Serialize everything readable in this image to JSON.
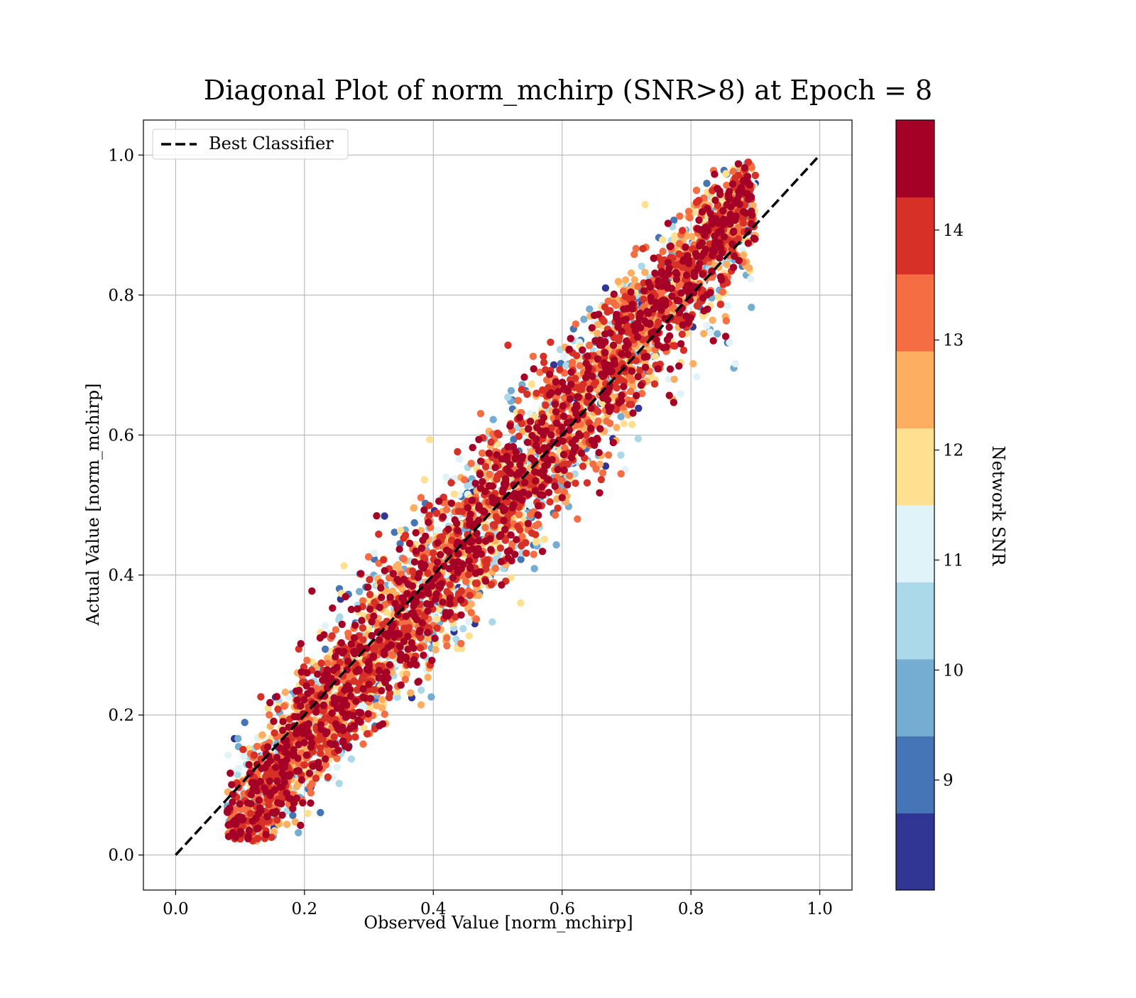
{
  "chart_data": {
    "type": "scatter",
    "title": "Diagonal Plot of norm_mchirp (SNR>8) at Epoch = 8",
    "xlabel": "Observed Value [norm_mchirp]",
    "ylabel": "Actual Value [norm_mchirp]",
    "xlim": [
      -0.05,
      1.05
    ],
    "ylim": [
      -0.05,
      1.05
    ],
    "xticks": [
      "0.0",
      "0.2",
      "0.4",
      "0.6",
      "0.8",
      "1.0"
    ],
    "yticks": [
      "0.0",
      "0.2",
      "0.4",
      "0.6",
      "0.8",
      "1.0"
    ],
    "grid": true,
    "legend": {
      "position": "top-left",
      "entries": [
        "Best Classifier"
      ]
    },
    "reference_line": {
      "name": "Best Classifier",
      "x": [
        0,
        1
      ],
      "y": [
        0,
        1
      ],
      "style": "dashed",
      "color": "#000000"
    },
    "colorbar": {
      "label": "Network SNR",
      "range": [
        8,
        15
      ],
      "tick_labels": [
        "9",
        "10",
        "11",
        "12",
        "13",
        "14"
      ],
      "tick_values": [
        9,
        10,
        11,
        12,
        13,
        14
      ],
      "colors": [
        "#313695",
        "#4575b4",
        "#74add1",
        "#abd9e9",
        "#e0f3f8",
        "#fee090",
        "#fdae61",
        "#f46d43",
        "#d73027",
        "#a50026"
      ]
    },
    "scatter_description": {
      "x_range": [
        0.08,
        0.9
      ],
      "y_range": [
        0.01,
        1.0
      ],
      "trend": "points spread around the diagonal; high SNR points near diagonal, low SNR points farther away"
    }
  }
}
